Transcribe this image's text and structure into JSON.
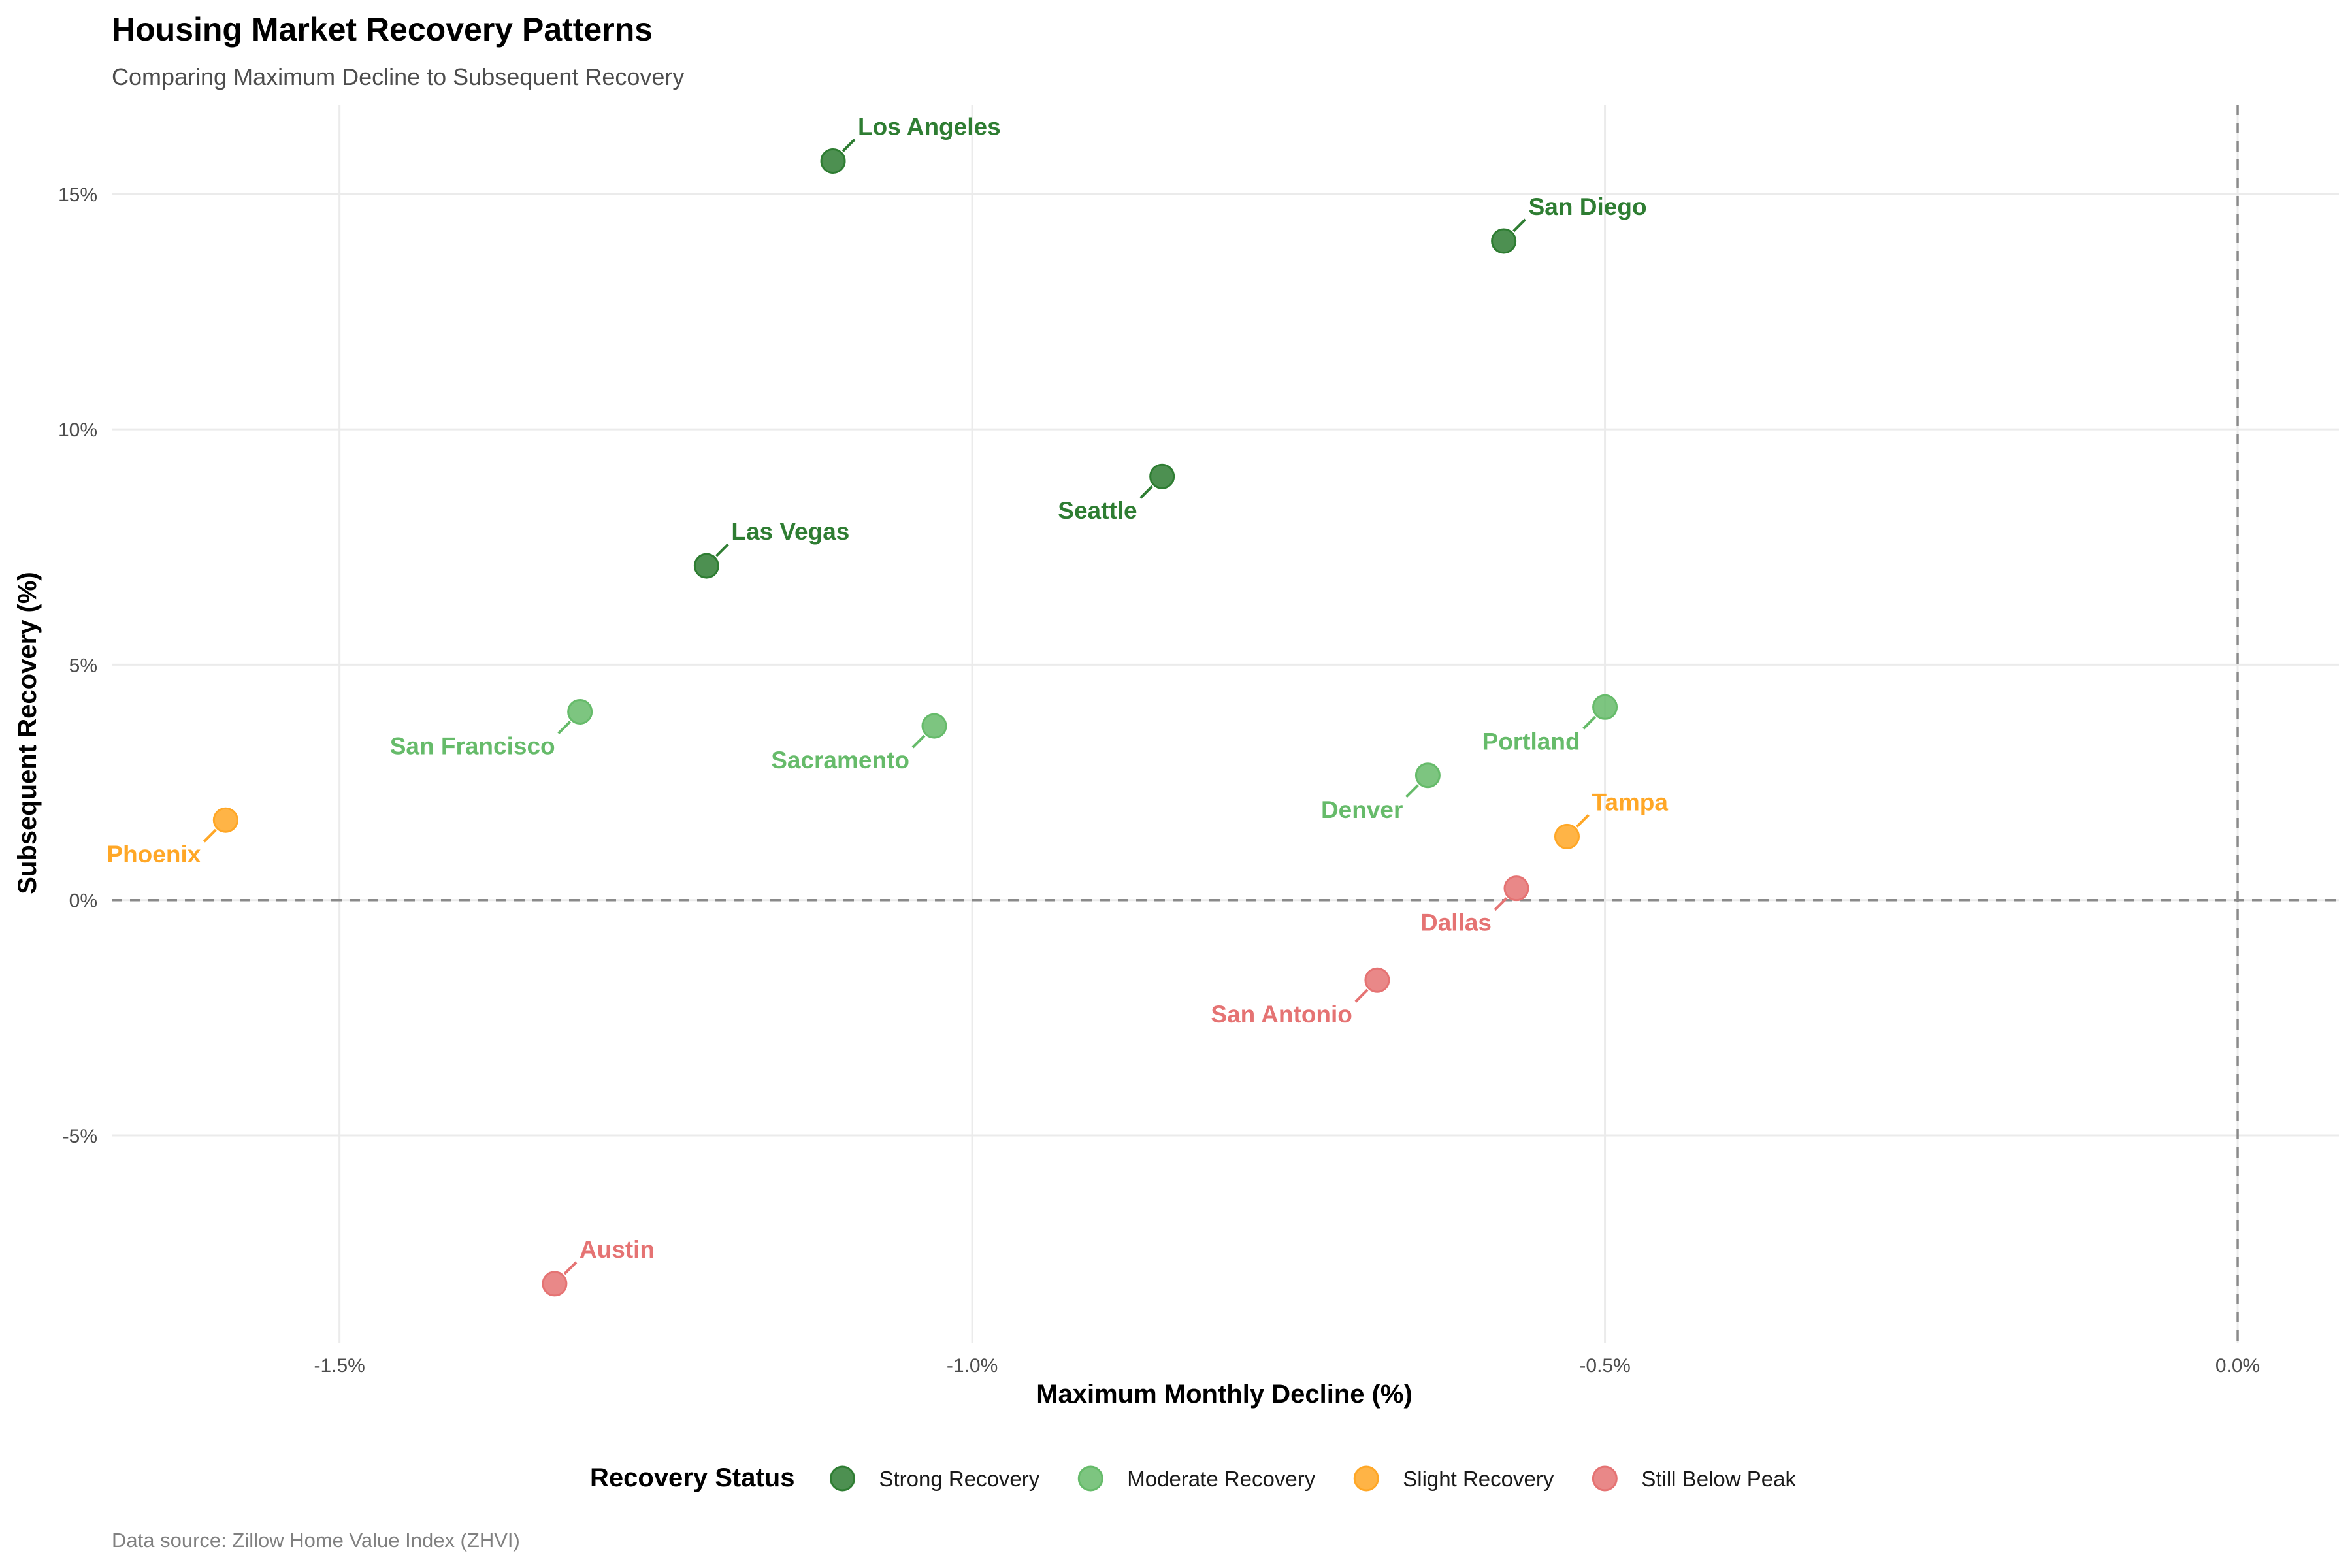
{
  "chart_data": {
    "type": "scatter",
    "title": "Housing Market Recovery Patterns",
    "subtitle": "Comparing Maximum Decline to Subsequent Recovery",
    "xlabel": "Maximum Monthly Decline (%)",
    "ylabel": "Subsequent Recovery (%)",
    "caption": "Data source: Zillow Home Value Index (ZHVI)",
    "xlim": [
      -1.68,
      0.08
    ],
    "ylim": [
      -9.4,
      16.9
    ],
    "x_ticks": [
      -1.5,
      -1.0,
      -0.5,
      0.0
    ],
    "x_tick_labels": [
      "-1.5%",
      "-1.0%",
      "-0.5%",
      "0.0%"
    ],
    "y_ticks": [
      -5,
      0,
      5,
      10,
      15
    ],
    "y_tick_labels": [
      "-5%",
      "0%",
      "5%",
      "10%",
      "15%"
    ],
    "reference_lines": {
      "x": 0,
      "y": 0,
      "style": "dashed"
    },
    "grid": true,
    "legend": {
      "title": "Recovery Status",
      "placement": "bottom",
      "entries": [
        {
          "key": "strong",
          "label": "Strong Recovery",
          "color": "#2E7D32"
        },
        {
          "key": "moderate",
          "label": "Moderate Recovery",
          "color": "#66BB6A"
        },
        {
          "key": "slight",
          "label": "Slight Recovery",
          "color": "#FFA726"
        },
        {
          "key": "below",
          "label": "Still Below Peak",
          "color": "#E57373"
        }
      ]
    },
    "points": [
      {
        "name": "Los Angeles",
        "x": -1.11,
        "y": 15.7,
        "status": "strong",
        "label_pos": "upper-right"
      },
      {
        "name": "San Diego",
        "x": -0.58,
        "y": 14.0,
        "status": "strong",
        "label_pos": "upper-right"
      },
      {
        "name": "Seattle",
        "x": -0.85,
        "y": 9.0,
        "status": "strong",
        "label_pos": "lower-left"
      },
      {
        "name": "Las Vegas",
        "x": -1.21,
        "y": 7.1,
        "status": "strong",
        "label_pos": "upper-right"
      },
      {
        "name": "San Francisco",
        "x": -1.31,
        "y": 4.0,
        "status": "moderate",
        "label_pos": "lower-left"
      },
      {
        "name": "Sacramento",
        "x": -1.03,
        "y": 3.7,
        "status": "moderate",
        "label_pos": "lower-left"
      },
      {
        "name": "Portland",
        "x": -0.5,
        "y": 4.1,
        "status": "moderate",
        "label_pos": "lower-left"
      },
      {
        "name": "Denver",
        "x": -0.64,
        "y": 2.65,
        "status": "moderate",
        "label_pos": "lower-left"
      },
      {
        "name": "Phoenix",
        "x": -1.59,
        "y": 1.7,
        "status": "slight",
        "label_pos": "lower-left"
      },
      {
        "name": "Tampa",
        "x": -0.53,
        "y": 1.35,
        "status": "slight",
        "label_pos": "upper-right"
      },
      {
        "name": "Dallas",
        "x": -0.57,
        "y": 0.25,
        "status": "below",
        "label_pos": "lower-left"
      },
      {
        "name": "San Antonio",
        "x": -0.68,
        "y": -1.7,
        "status": "below",
        "label_pos": "lower-left"
      },
      {
        "name": "Austin",
        "x": -1.33,
        "y": -8.15,
        "status": "below",
        "label_pos": "upper-right"
      }
    ]
  }
}
